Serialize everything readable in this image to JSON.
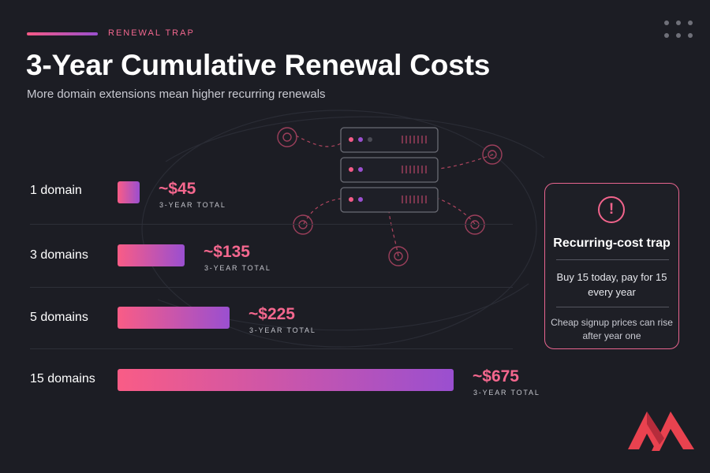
{
  "header": {
    "eyebrow": "RENEWAL TRAP",
    "title": "3-Year Cumulative Renewal Costs",
    "subtitle": "More domain extensions mean higher recurring renewals"
  },
  "chart_data": {
    "type": "bar",
    "orientation": "horizontal",
    "categories": [
      "1 domain",
      "3 domains",
      "5 domains",
      "15 domains"
    ],
    "values": [
      45,
      135,
      225,
      675
    ],
    "value_labels": [
      "~$45",
      "~$135",
      "~$225",
      "~$675"
    ],
    "value_sublabel": "3-YEAR TOTAL",
    "xlim": [
      0,
      675
    ],
    "grid": false,
    "legend": "none"
  },
  "callout": {
    "icon": "exclamation-icon",
    "title": "Recurring-cost trap",
    "line1": "Buy 15 today, pay for 15 every year",
    "line2": "Cheap signup prices can rise after year one"
  },
  "colors": {
    "background": "#1c1d24",
    "accent_pink": "#f65a86",
    "accent_purple": "#9a4fd0",
    "value_text": "#f4678e"
  },
  "icons": {
    "menu": "dots-grid-icon",
    "decoration": "server-network-icon",
    "brand": "brand-logo-icon"
  }
}
